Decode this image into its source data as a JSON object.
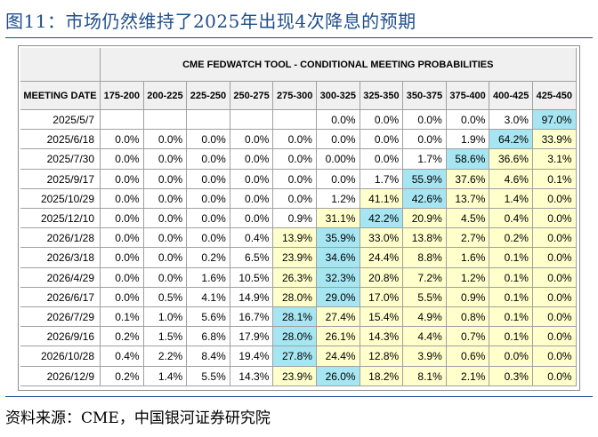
{
  "figure_title": "图11：市场仍然维持了2025年出现4次降息的预期",
  "source_note": "资料来源：CME，中国银河证券研究院",
  "colors": {
    "title": "#1f4e8c",
    "yellow": "#ffffcc",
    "blue": "#a6e6f2",
    "header_bg": "#f0f0f0"
  },
  "chart_data": {
    "type": "table",
    "title": "CME FEDWATCH TOOL - CONDITIONAL MEETING PROBABILITIES",
    "row_header": "MEETING DATE",
    "columns": [
      "175-200",
      "200-225",
      "225-250",
      "250-275",
      "275-300",
      "300-325",
      "325-350",
      "350-375",
      "375-400",
      "400-425",
      "425-450"
    ],
    "rows": [
      {
        "date": "2025/5/7",
        "values": [
          "",
          "",
          "",
          "",
          "",
          "0.0%",
          "0.0%",
          "0.0%",
          "0.0%",
          "3.0%",
          "97.0%"
        ],
        "highlight": 10,
        "yellow_from": null
      },
      {
        "date": "2025/6/18",
        "values": [
          "0.0%",
          "0.0%",
          "0.0%",
          "0.0%",
          "0.0%",
          "0.0%",
          "0.0%",
          "0.0%",
          "1.9%",
          "64.2%",
          "33.9%"
        ],
        "highlight": 9,
        "yellow_from": 10
      },
      {
        "date": "2025/7/30",
        "values": [
          "0.0%",
          "0.0%",
          "0.0%",
          "0.0%",
          "0.0%",
          "0.00%",
          "0.0%",
          "1.7%",
          "58.6%",
          "36.6%",
          "3.1%"
        ],
        "highlight": 8,
        "yellow_from": 9
      },
      {
        "date": "2025/9/17",
        "values": [
          "0.0%",
          "0.0%",
          "0.0%",
          "0.0%",
          "0.0%",
          "0.0%",
          "1.7%",
          "55.9%",
          "37.6%",
          "4.6%",
          "0.1%"
        ],
        "highlight": 7,
        "yellow_from": 8
      },
      {
        "date": "2025/10/29",
        "values": [
          "0.0%",
          "0.0%",
          "0.0%",
          "0.0%",
          "0.0%",
          "1.2%",
          "41.1%",
          "42.6%",
          "13.7%",
          "1.4%",
          "0.0%"
        ],
        "highlight": 7,
        "yellow_from": 6
      },
      {
        "date": "2025/12/10",
        "values": [
          "0.0%",
          "0.0%",
          "0.0%",
          "0.0%",
          "0.9%",
          "31.1%",
          "42.2%",
          "20.9%",
          "4.5%",
          "0.4%",
          "0.0%"
        ],
        "highlight": 6,
        "yellow_from": 5
      },
      {
        "date": "2026/1/28",
        "values": [
          "0.0%",
          "0.0%",
          "0.0%",
          "0.4%",
          "13.9%",
          "35.9%",
          "33.0%",
          "13.8%",
          "2.7%",
          "0.2%",
          "0.0%"
        ],
        "highlight": 5,
        "yellow_from": 4
      },
      {
        "date": "2026/3/18",
        "values": [
          "0.0%",
          "0.0%",
          "0.2%",
          "6.5%",
          "23.9%",
          "34.6%",
          "24.4%",
          "8.8%",
          "1.6%",
          "0.1%",
          "0.0%"
        ],
        "highlight": 5,
        "yellow_from": 4
      },
      {
        "date": "2026/4/29",
        "values": [
          "0.0%",
          "0.0%",
          "1.6%",
          "10.5%",
          "26.3%",
          "32.3%",
          "20.8%",
          "7.2%",
          "1.2%",
          "0.1%",
          "0.0%"
        ],
        "highlight": 5,
        "yellow_from": 4
      },
      {
        "date": "2026/6/17",
        "values": [
          "0.0%",
          "0.5%",
          "4.1%",
          "14.9%",
          "28.0%",
          "29.0%",
          "17.0%",
          "5.5%",
          "0.9%",
          "0.1%",
          "0.0%"
        ],
        "highlight": 5,
        "yellow_from": 4
      },
      {
        "date": "2026/7/29",
        "values": [
          "0.1%",
          "1.0%",
          "5.6%",
          "16.7%",
          "28.1%",
          "27.4%",
          "15.4%",
          "4.9%",
          "0.8%",
          "0.1%",
          "0.0%"
        ],
        "highlight": 4,
        "yellow_from": 4
      },
      {
        "date": "2026/9/16",
        "values": [
          "0.2%",
          "1.5%",
          "6.8%",
          "17.9%",
          "28.0%",
          "26.1%",
          "14.3%",
          "4.4%",
          "0.7%",
          "0.1%",
          "0.0%"
        ],
        "highlight": 4,
        "yellow_from": 4
      },
      {
        "date": "2026/10/28",
        "values": [
          "0.4%",
          "2.2%",
          "8.4%",
          "19.4%",
          "27.8%",
          "24.4%",
          "12.8%",
          "3.9%",
          "0.6%",
          "0.0%",
          "0.0%"
        ],
        "highlight": 4,
        "yellow_from": 4
      },
      {
        "date": "2026/12/9",
        "values": [
          "0.2%",
          "1.4%",
          "5.5%",
          "14.3%",
          "23.9%",
          "26.0%",
          "18.2%",
          "8.1%",
          "2.1%",
          "0.3%",
          "0.0%"
        ],
        "highlight": 5,
        "yellow_from": 4
      }
    ]
  }
}
